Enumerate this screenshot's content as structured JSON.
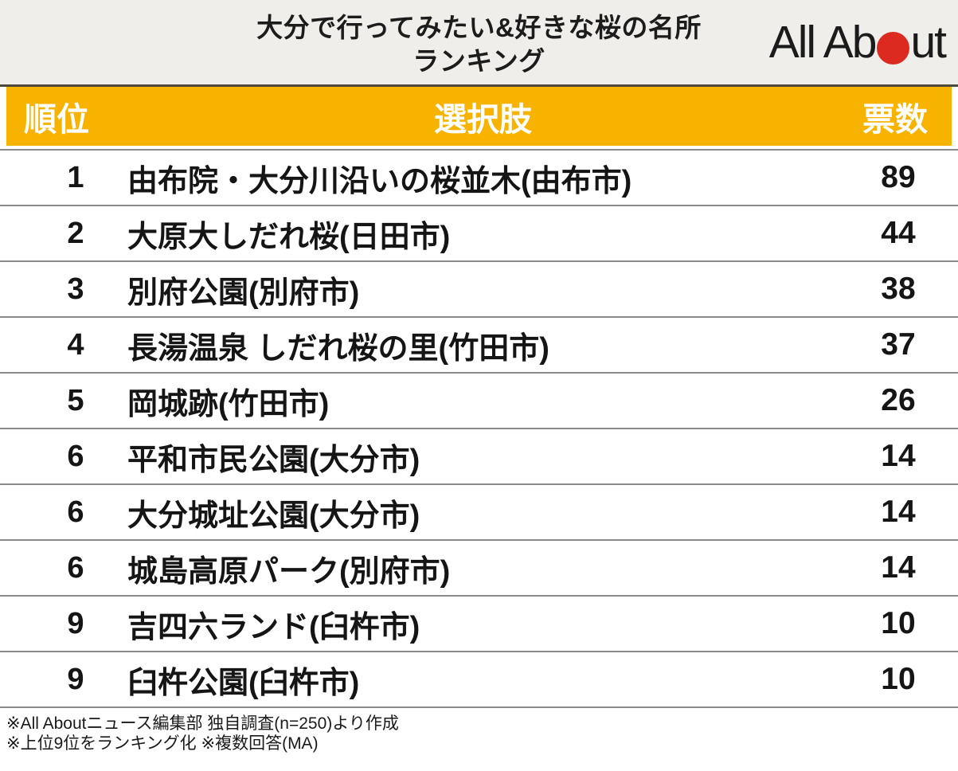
{
  "header": {
    "title_line1": "大分で行ってみたい&好きな桜の名所",
    "title_line2": "ランキング",
    "logo": {
      "text_left": "All Ab",
      "text_right": "ut",
      "circle_color": "#dc2a20",
      "name": "All About"
    },
    "background_color": "#efeeeb"
  },
  "table": {
    "header_background_color": "#f8b301",
    "columns": {
      "rank": "順位",
      "choice": "選択肢",
      "votes": "票数"
    },
    "rows": [
      {
        "rank": "1",
        "name": "由布院・大分川沿いの桜並木(由布市)",
        "votes": "89"
      },
      {
        "rank": "2",
        "name": "大原大しだれ桜(日田市)",
        "votes": "44"
      },
      {
        "rank": "3",
        "name": "別府公園(別府市)",
        "votes": "38"
      },
      {
        "rank": "4",
        "name": "長湯温泉 しだれ桜の里(竹田市)",
        "votes": "37"
      },
      {
        "rank": "5",
        "name": "岡城跡(竹田市)",
        "votes": "26"
      },
      {
        "rank": "6",
        "name": "平和市民公園(大分市)",
        "votes": "14"
      },
      {
        "rank": "6",
        "name": "大分城址公園(大分市)",
        "votes": "14"
      },
      {
        "rank": "6",
        "name": "城島高原パーク(別府市)",
        "votes": "14"
      },
      {
        "rank": "9",
        "name": "吉四六ランド(臼杵市)",
        "votes": "10"
      },
      {
        "rank": "9",
        "name": "臼杵公園(臼杵市)",
        "votes": "10"
      }
    ]
  },
  "footer": {
    "line1": "※All Aboutニュース編集部 独自調査(n=250)より作成",
    "line2": "※上位9位をランキング化 ※複数回答(MA)"
  },
  "chart_data": {
    "type": "table",
    "title": "大分で行ってみたい&好きな桜の名所ランキング",
    "columns": [
      "順位",
      "選択肢",
      "票数"
    ],
    "categories": [
      "由布院・大分川沿いの桜並木(由布市)",
      "大原大しだれ桜(日田市)",
      "別府公園(別府市)",
      "長湯温泉 しだれ桜の里(竹田市)",
      "岡城跡(竹田市)",
      "平和市民公園(大分市)",
      "大分城址公園(大分市)",
      "城島高原パーク(別府市)",
      "吉四六ランド(臼杵市)",
      "臼杵公園(臼杵市)"
    ],
    "ranks": [
      1,
      2,
      3,
      4,
      5,
      6,
      6,
      6,
      9,
      9
    ],
    "values": [
      89,
      44,
      38,
      37,
      26,
      14,
      14,
      14,
      10,
      10
    ],
    "notes": [
      "※All Aboutニュース編集部 独自調査(n=250)より作成",
      "※上位9位をランキング化 ※複数回答(MA)"
    ]
  }
}
